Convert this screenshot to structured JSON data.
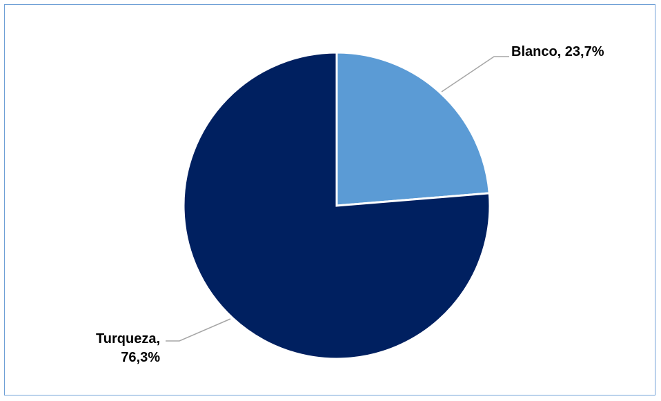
{
  "chart_data": {
    "type": "pie",
    "title": "",
    "slices": [
      {
        "name": "Blanco",
        "value": 23.7,
        "label": "Blanco, 23,7%",
        "color": "#5b9bd5"
      },
      {
        "name": "Turqueza",
        "value": 76.3,
        "label_line1": "Turqueza,",
        "label_line2": "76,3%",
        "color": "#002060"
      }
    ],
    "leader_line_color": "#a6a6a6",
    "border_color": "#6fa0d6"
  }
}
